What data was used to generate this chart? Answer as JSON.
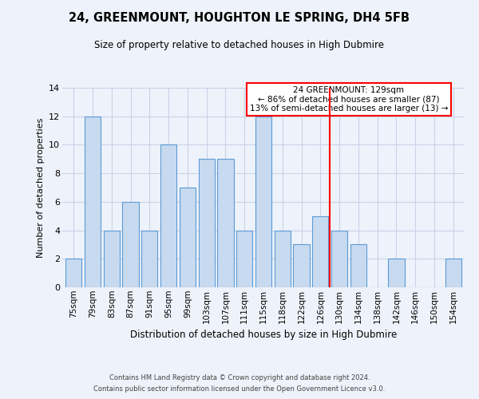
{
  "title": "24, GREENMOUNT, HOUGHTON LE SPRING, DH4 5FB",
  "subtitle": "Size of property relative to detached houses in High Dubmire",
  "xlabel": "Distribution of detached houses by size in High Dubmire",
  "ylabel": "Number of detached properties",
  "categories": [
    "75sqm",
    "79sqm",
    "83sqm",
    "87sqm",
    "91sqm",
    "95sqm",
    "99sqm",
    "103sqm",
    "107sqm",
    "111sqm",
    "115sqm",
    "118sqm",
    "122sqm",
    "126sqm",
    "130sqm",
    "134sqm",
    "138sqm",
    "142sqm",
    "146sqm",
    "150sqm",
    "154sqm"
  ],
  "values": [
    2,
    12,
    4,
    6,
    4,
    10,
    7,
    9,
    9,
    4,
    12,
    4,
    3,
    5,
    4,
    3,
    0,
    2,
    0,
    0,
    2
  ],
  "bar_color": "#c8daf0",
  "bar_edge_color": "#5b9bd5",
  "grid_color": "#c8d4e8",
  "background_color": "#eef2fa",
  "red_line_x": 13.5,
  "annotation_text": "24 GREENMOUNT: 129sqm\n← 86% of detached houses are smaller (87)\n13% of semi-detached houses are larger (13) →",
  "annotation_box_color": "white",
  "annotation_box_edge_color": "red",
  "ylim": [
    0,
    14
  ],
  "yticks": [
    0,
    2,
    4,
    6,
    8,
    10,
    12,
    14
  ],
  "footer_line1": "Contains HM Land Registry data © Crown copyright and database right 2024.",
  "footer_line2": "Contains public sector information licensed under the Open Government Licence v3.0."
}
